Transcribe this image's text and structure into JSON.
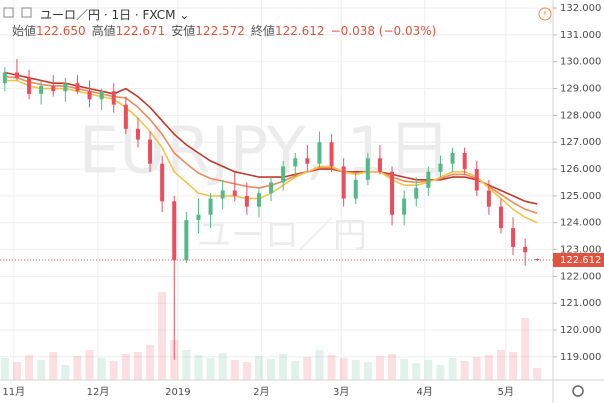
{
  "header": {
    "symbol": "ユーロ／円 · 1日 · FXCM",
    "open_label": "始値",
    "open": "122.650",
    "high_label": "高値",
    "high": "122.671",
    "low_label": "安値",
    "low": "122.572",
    "close_label": "終値",
    "close": "122.612",
    "change": "−0.038 (−0.03%)"
  },
  "chart_data": {
    "type": "candlestick",
    "watermark": "EURJPY, 1日",
    "watermark_sub": "ユーロ／円",
    "up_color": "#53b987",
    "down_color": "#eb4d5c",
    "grid": true,
    "open": [
      129.2,
      129.6,
      129.4,
      128.8,
      129.1,
      128.9,
      129.2,
      128.9,
      128.6,
      128.9,
      128.4,
      127.5,
      127.1,
      126.2,
      124.8,
      122.6,
      124.1,
      124.3,
      124.9,
      125.2,
      125.0,
      124.6,
      125.1,
      125.5,
      126.1,
      126.4,
      126.2,
      127.0,
      126.1,
      124.9,
      125.6,
      126.4,
      125.9,
      124.3,
      124.9,
      125.3,
      125.9,
      126.2,
      126.6,
      126.0,
      125.2,
      124.6,
      123.8,
      123.1,
      122.65
    ],
    "high": [
      129.8,
      130.1,
      129.7,
      129.3,
      129.5,
      129.4,
      129.5,
      129.3,
      129.0,
      129.2,
      128.7,
      127.9,
      127.4,
      126.5,
      125.0,
      124.4,
      124.9,
      125.1,
      125.6,
      125.9,
      125.5,
      125.3,
      125.7,
      126.3,
      126.6,
      126.9,
      127.4,
      127.3,
      126.4,
      125.9,
      126.6,
      126.9,
      126.1,
      125.2,
      125.7,
      126.1,
      126.5,
      126.8,
      126.8,
      126.3,
      125.6,
      124.9,
      124.2,
      123.4,
      122.671
    ],
    "low": [
      128.9,
      129.3,
      128.6,
      128.4,
      128.7,
      128.5,
      128.8,
      128.3,
      128.2,
      128.1,
      127.3,
      126.8,
      125.9,
      124.4,
      118.9,
      122.5,
      123.6,
      123.8,
      124.5,
      124.8,
      124.3,
      124.2,
      124.8,
      125.2,
      125.7,
      125.9,
      126.0,
      125.9,
      124.6,
      124.7,
      125.4,
      125.8,
      123.9,
      123.9,
      124.6,
      125.0,
      125.7,
      125.9,
      125.8,
      125.0,
      124.3,
      123.6,
      122.8,
      122.4,
      122.572
    ],
    "close": [
      129.6,
      129.4,
      128.8,
      129.1,
      128.9,
      129.2,
      128.9,
      128.6,
      128.9,
      128.4,
      127.5,
      127.1,
      126.2,
      124.8,
      122.6,
      124.1,
      124.3,
      124.9,
      125.2,
      125.0,
      124.6,
      125.1,
      125.5,
      126.1,
      126.4,
      126.2,
      127.0,
      126.1,
      124.9,
      125.6,
      126.4,
      125.9,
      124.3,
      124.9,
      125.3,
      125.9,
      126.2,
      126.6,
      126.0,
      125.2,
      124.6,
      123.8,
      123.1,
      122.9,
      122.612
    ],
    "volume": [
      22,
      18,
      25,
      20,
      28,
      15,
      24,
      30,
      22,
      19,
      26,
      28,
      35,
      88,
      40,
      30,
      25,
      22,
      27,
      20,
      18,
      24,
      21,
      26,
      19,
      23,
      30,
      25,
      22,
      20,
      18,
      24,
      26,
      21,
      17,
      20,
      15,
      22,
      19,
      23,
      25,
      30,
      28,
      62,
      12
    ],
    "volume_lim": [
      0,
      100
    ],
    "ma": [
      {
        "color": "#c0392b",
        "values": [
          129.6,
          129.5,
          129.4,
          129.3,
          129.2,
          129.2,
          129.1,
          129.0,
          128.9,
          128.8,
          129.0,
          128.7,
          128.3,
          127.8,
          127.3,
          126.9,
          126.6,
          126.3,
          126.1,
          125.9,
          125.8,
          125.7,
          125.7,
          125.7,
          125.8,
          125.9,
          126.0,
          126.0,
          125.9,
          125.9,
          125.9,
          125.9,
          125.8,
          125.7,
          125.6,
          125.6,
          125.6,
          125.7,
          125.7,
          125.6,
          125.4,
          125.2,
          125.0,
          124.8,
          124.7
        ]
      },
      {
        "color": "#ec8a5c",
        "values": [
          129.45,
          129.4,
          129.25,
          129.15,
          129.1,
          129.1,
          129.0,
          128.9,
          128.8,
          128.7,
          128.65,
          128.3,
          127.85,
          127.3,
          126.6,
          126.2,
          125.85,
          125.65,
          125.55,
          125.45,
          125.35,
          125.3,
          125.4,
          125.55,
          125.75,
          125.9,
          126.05,
          126.05,
          125.9,
          125.85,
          125.9,
          125.9,
          125.7,
          125.55,
          125.5,
          125.55,
          125.65,
          125.8,
          125.8,
          125.65,
          125.35,
          125.05,
          124.75,
          124.5,
          124.35
        ]
      },
      {
        "color": "#f3c44a",
        "values": [
          129.3,
          129.3,
          129.1,
          129.0,
          129.0,
          129.0,
          128.9,
          128.8,
          128.7,
          128.6,
          128.3,
          127.9,
          127.4,
          126.8,
          125.9,
          125.5,
          125.1,
          125.0,
          125.0,
          125.0,
          124.9,
          124.9,
          125.1,
          125.4,
          125.7,
          125.9,
          126.1,
          126.1,
          125.9,
          125.8,
          125.9,
          125.9,
          125.6,
          125.4,
          125.4,
          125.5,
          125.7,
          125.9,
          125.9,
          125.7,
          125.3,
          124.9,
          124.5,
          124.2,
          124.0
        ]
      }
    ],
    "last_price": {
      "value": 122.612,
      "label": "122.612",
      "color": "#e0533f"
    },
    "xlim": [
      -0.4,
      45.3
    ],
    "xticks": [
      {
        "value": 0.74,
        "label": "11月"
      },
      {
        "value": 7.7,
        "label": "12月"
      },
      {
        "value": 14.3,
        "label": "2019"
      },
      {
        "value": 21.2,
        "label": "2月"
      },
      {
        "value": 27.8,
        "label": "3月"
      },
      {
        "value": 34.7,
        "label": "4月"
      },
      {
        "value": 41.4,
        "label": "5月"
      }
    ],
    "ylim": [
      118.14,
      132.3
    ],
    "yticks": [
      {
        "value": 119,
        "label": "119.000"
      },
      {
        "value": 120,
        "label": "120.000"
      },
      {
        "value": 121,
        "label": "121.000"
      },
      {
        "value": 122,
        "label": "122.000"
      },
      {
        "value": 123,
        "label": "123.000"
      },
      {
        "value": 124,
        "label": "124.000"
      },
      {
        "value": 125,
        "label": "125.000"
      },
      {
        "value": 126,
        "label": "126.000"
      },
      {
        "value": 127,
        "label": "127.000"
      },
      {
        "value": 128,
        "label": "128.000"
      },
      {
        "value": 129,
        "label": "129.000"
      },
      {
        "value": 130,
        "label": "130.000"
      },
      {
        "value": 131,
        "label": "131.000"
      },
      {
        "value": 132,
        "label": "132.000"
      }
    ]
  }
}
